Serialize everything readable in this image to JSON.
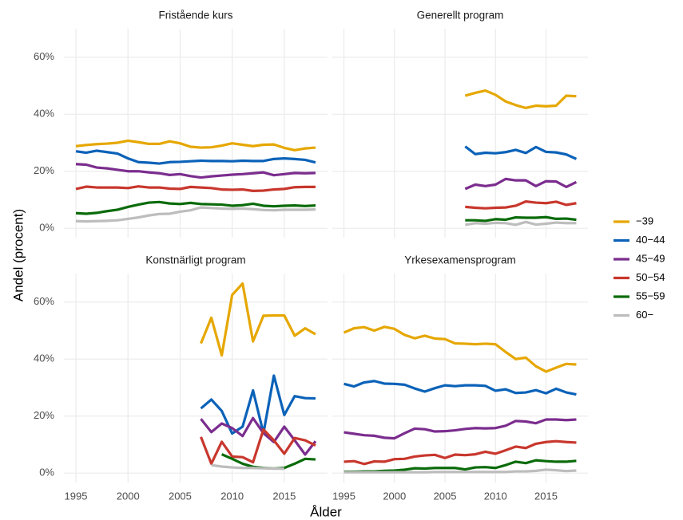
{
  "chart_data": {
    "type": "line",
    "xlabel": "Ålder",
    "ylabel": "Andel (procent)",
    "xlim": [
      1993.85,
      2019.15
    ],
    "xticks": [
      1995,
      2000,
      2005,
      2010,
      2015
    ],
    "ylim": [
      -3.3,
      70
    ],
    "yticks": [
      {
        "value": 0,
        "label": "0%"
      },
      {
        "value": 20,
        "label": "20%"
      },
      {
        "value": 40,
        "label": "40%"
      },
      {
        "value": 60,
        "label": "60%"
      }
    ],
    "grid": true,
    "legend": "right",
    "series": [
      {
        "name": "−39",
        "color": "#E6A700"
      },
      {
        "name": "40−44",
        "color": "#0B62B8"
      },
      {
        "name": "45−49",
        "color": "#7B2D8E"
      },
      {
        "name": "50−54",
        "color": "#C8372D"
      },
      {
        "name": "55−59",
        "color": "#0A6B0A"
      },
      {
        "name": "60−",
        "color": "#BDBDBD"
      }
    ],
    "facets": [
      {
        "title": "Fristående kurs",
        "x": [
          1995,
          1996,
          1997,
          1998,
          1999,
          2000,
          2001,
          2002,
          2003,
          2004,
          2005,
          2006,
          2007,
          2008,
          2009,
          2010,
          2011,
          2012,
          2013,
          2014,
          2015,
          2016,
          2017,
          2018
        ],
        "values": [
          [
            28.8,
            29.2,
            29.5,
            29.7,
            30.0,
            30.7,
            30.2,
            29.6,
            29.6,
            30.5,
            29.8,
            28.6,
            28.3,
            28.4,
            29.0,
            29.8,
            29.3,
            28.8,
            29.3,
            29.4,
            28.2,
            27.4,
            28.0,
            28.3
          ],
          [
            27.0,
            26.5,
            27.2,
            26.7,
            26.2,
            24.5,
            23.2,
            23.0,
            22.7,
            23.2,
            23.3,
            23.5,
            23.7,
            23.6,
            23.6,
            23.5,
            23.7,
            23.6,
            23.6,
            24.3,
            24.5,
            24.3,
            24.0,
            23.1
          ],
          [
            22.5,
            22.3,
            21.3,
            21.0,
            20.5,
            20.0,
            20.0,
            19.6,
            19.3,
            18.7,
            19.0,
            18.3,
            17.8,
            18.2,
            18.5,
            18.8,
            19.0,
            19.3,
            19.6,
            18.6,
            19.0,
            19.4,
            19.3,
            19.4
          ],
          [
            13.8,
            14.6,
            14.3,
            14.3,
            14.3,
            14.1,
            14.7,
            14.3,
            14.3,
            13.9,
            13.8,
            14.5,
            14.3,
            14.1,
            13.6,
            13.5,
            13.6,
            13.1,
            13.2,
            13.6,
            13.8,
            14.4,
            14.5,
            14.5
          ],
          [
            5.3,
            5.1,
            5.4,
            6.0,
            6.5,
            7.5,
            8.3,
            9.0,
            9.2,
            8.7,
            8.5,
            8.9,
            8.5,
            8.4,
            8.3,
            7.9,
            8.1,
            8.6,
            7.9,
            7.7,
            7.9,
            8.0,
            7.8,
            8.0
          ],
          [
            2.5,
            2.4,
            2.5,
            2.6,
            2.8,
            3.3,
            3.8,
            4.5,
            5.0,
            5.1,
            5.8,
            6.3,
            7.3,
            7.1,
            6.9,
            6.8,
            6.9,
            6.7,
            6.4,
            6.3,
            6.5,
            6.5,
            6.5,
            6.6
          ]
        ]
      },
      {
        "title": "Generellt program",
        "x": [
          2007,
          2008,
          2009,
          2010,
          2011,
          2012,
          2013,
          2014,
          2015,
          2016,
          2017,
          2018
        ],
        "values": [
          [
            46.5,
            47.5,
            48.3,
            46.8,
            44.5,
            43.2,
            42.2,
            43.0,
            42.8,
            43.0,
            46.5,
            46.3
          ],
          [
            28.7,
            26.0,
            26.5,
            26.3,
            26.7,
            27.5,
            26.4,
            28.5,
            26.8,
            26.6,
            25.9,
            24.3
          ],
          [
            13.8,
            15.3,
            14.8,
            15.3,
            17.3,
            16.8,
            16.8,
            14.8,
            16.5,
            16.4,
            14.5,
            16.2
          ],
          [
            7.5,
            7.2,
            7.0,
            7.2,
            7.3,
            7.9,
            9.4,
            9.0,
            8.8,
            9.3,
            8.2,
            8.8
          ],
          [
            2.8,
            2.8,
            2.6,
            3.2,
            3.0,
            3.8,
            3.7,
            3.7,
            3.9,
            3.3,
            3.4,
            3.0
          ],
          [
            1.2,
            1.8,
            1.6,
            1.9,
            1.8,
            1.2,
            2.2,
            1.3,
            1.6,
            2.0,
            1.8,
            1.8
          ]
        ]
      },
      {
        "title": "Konstnärligt program",
        "x": [
          2007,
          2008,
          2009,
          2010,
          2011,
          2012,
          2013,
          2014,
          2015,
          2016,
          2017,
          2018
        ],
        "values": [
          [
            45.5,
            54.5,
            41.3,
            62.5,
            66.5,
            46.2,
            55.2,
            55.3,
            55.3,
            48.2,
            50.8,
            48.7
          ],
          [
            22.7,
            25.8,
            21.8,
            13.9,
            16.3,
            29.0,
            14.0,
            34.2,
            20.4,
            27.0,
            26.3,
            26.2
          ],
          [
            19.0,
            14.4,
            17.4,
            15.8,
            13.0,
            19.3,
            14.0,
            10.9,
            16.3,
            11.5,
            6.5,
            11.2
          ],
          [
            12.7,
            3.3,
            11.0,
            5.8,
            5.6,
            3.8,
            15.3,
            11.5,
            6.8,
            12.3,
            11.5,
            9.7
          ],
          [
            null,
            null,
            6.6,
            5.0,
            3.3,
            2.2,
            1.8,
            1.6,
            1.8,
            3.3,
            5.0,
            4.8
          ],
          [
            null,
            2.8,
            2.3,
            2.0,
            1.8,
            1.8,
            1.7,
            1.6,
            1.5,
            null,
            null,
            null
          ]
        ]
      },
      {
        "title": "Yrkesexamensprogram",
        "x": [
          1995,
          1996,
          1997,
          1998,
          1999,
          2000,
          2001,
          2002,
          2003,
          2004,
          2005,
          2006,
          2007,
          2008,
          2009,
          2010,
          2011,
          2012,
          2013,
          2014,
          2015,
          2016,
          2017,
          2018
        ],
        "values": [
          [
            49.3,
            50.8,
            51.2,
            50.0,
            51.3,
            50.6,
            48.5,
            47.3,
            48.2,
            47.2,
            47.0,
            45.5,
            45.4,
            45.2,
            45.4,
            45.2,
            42.5,
            40.0,
            40.5,
            37.5,
            35.6,
            37.0,
            38.3,
            38.1
          ],
          [
            31.3,
            30.4,
            31.8,
            32.3,
            31.4,
            31.3,
            31.0,
            29.7,
            28.6,
            29.8,
            30.8,
            30.5,
            30.8,
            30.8,
            30.6,
            28.9,
            29.4,
            28.1,
            28.3,
            29.1,
            28.0,
            29.6,
            28.3,
            27.6
          ],
          [
            14.3,
            13.8,
            13.3,
            13.1,
            12.4,
            12.2,
            14.0,
            15.6,
            15.4,
            14.6,
            14.7,
            15.0,
            15.5,
            15.8,
            15.7,
            15.8,
            16.6,
            18.3,
            18.1,
            17.5,
            18.8,
            18.8,
            18.6,
            18.8
          ],
          [
            4.0,
            4.2,
            3.2,
            4.1,
            4.0,
            4.9,
            5.0,
            5.8,
            6.2,
            6.4,
            5.3,
            6.5,
            6.3,
            6.6,
            7.5,
            6.8,
            8.0,
            9.3,
            8.8,
            10.3,
            10.9,
            11.2,
            10.9,
            10.7
          ],
          [
            0.5,
            0.5,
            0.6,
            0.6,
            0.8,
            0.9,
            1.2,
            1.7,
            1.6,
            1.8,
            1.8,
            1.8,
            1.3,
            2.0,
            2.1,
            1.8,
            2.8,
            4.0,
            3.5,
            4.5,
            4.2,
            4.0,
            4.0,
            4.3
          ],
          [
            0.3,
            0.3,
            0.3,
            0.3,
            0.3,
            0.3,
            0.3,
            0.3,
            0.3,
            0.4,
            0.4,
            0.4,
            0.4,
            0.4,
            0.4,
            0.4,
            0.4,
            0.6,
            0.6,
            0.8,
            1.2,
            1.0,
            0.7,
            0.9
          ]
        ]
      }
    ]
  }
}
